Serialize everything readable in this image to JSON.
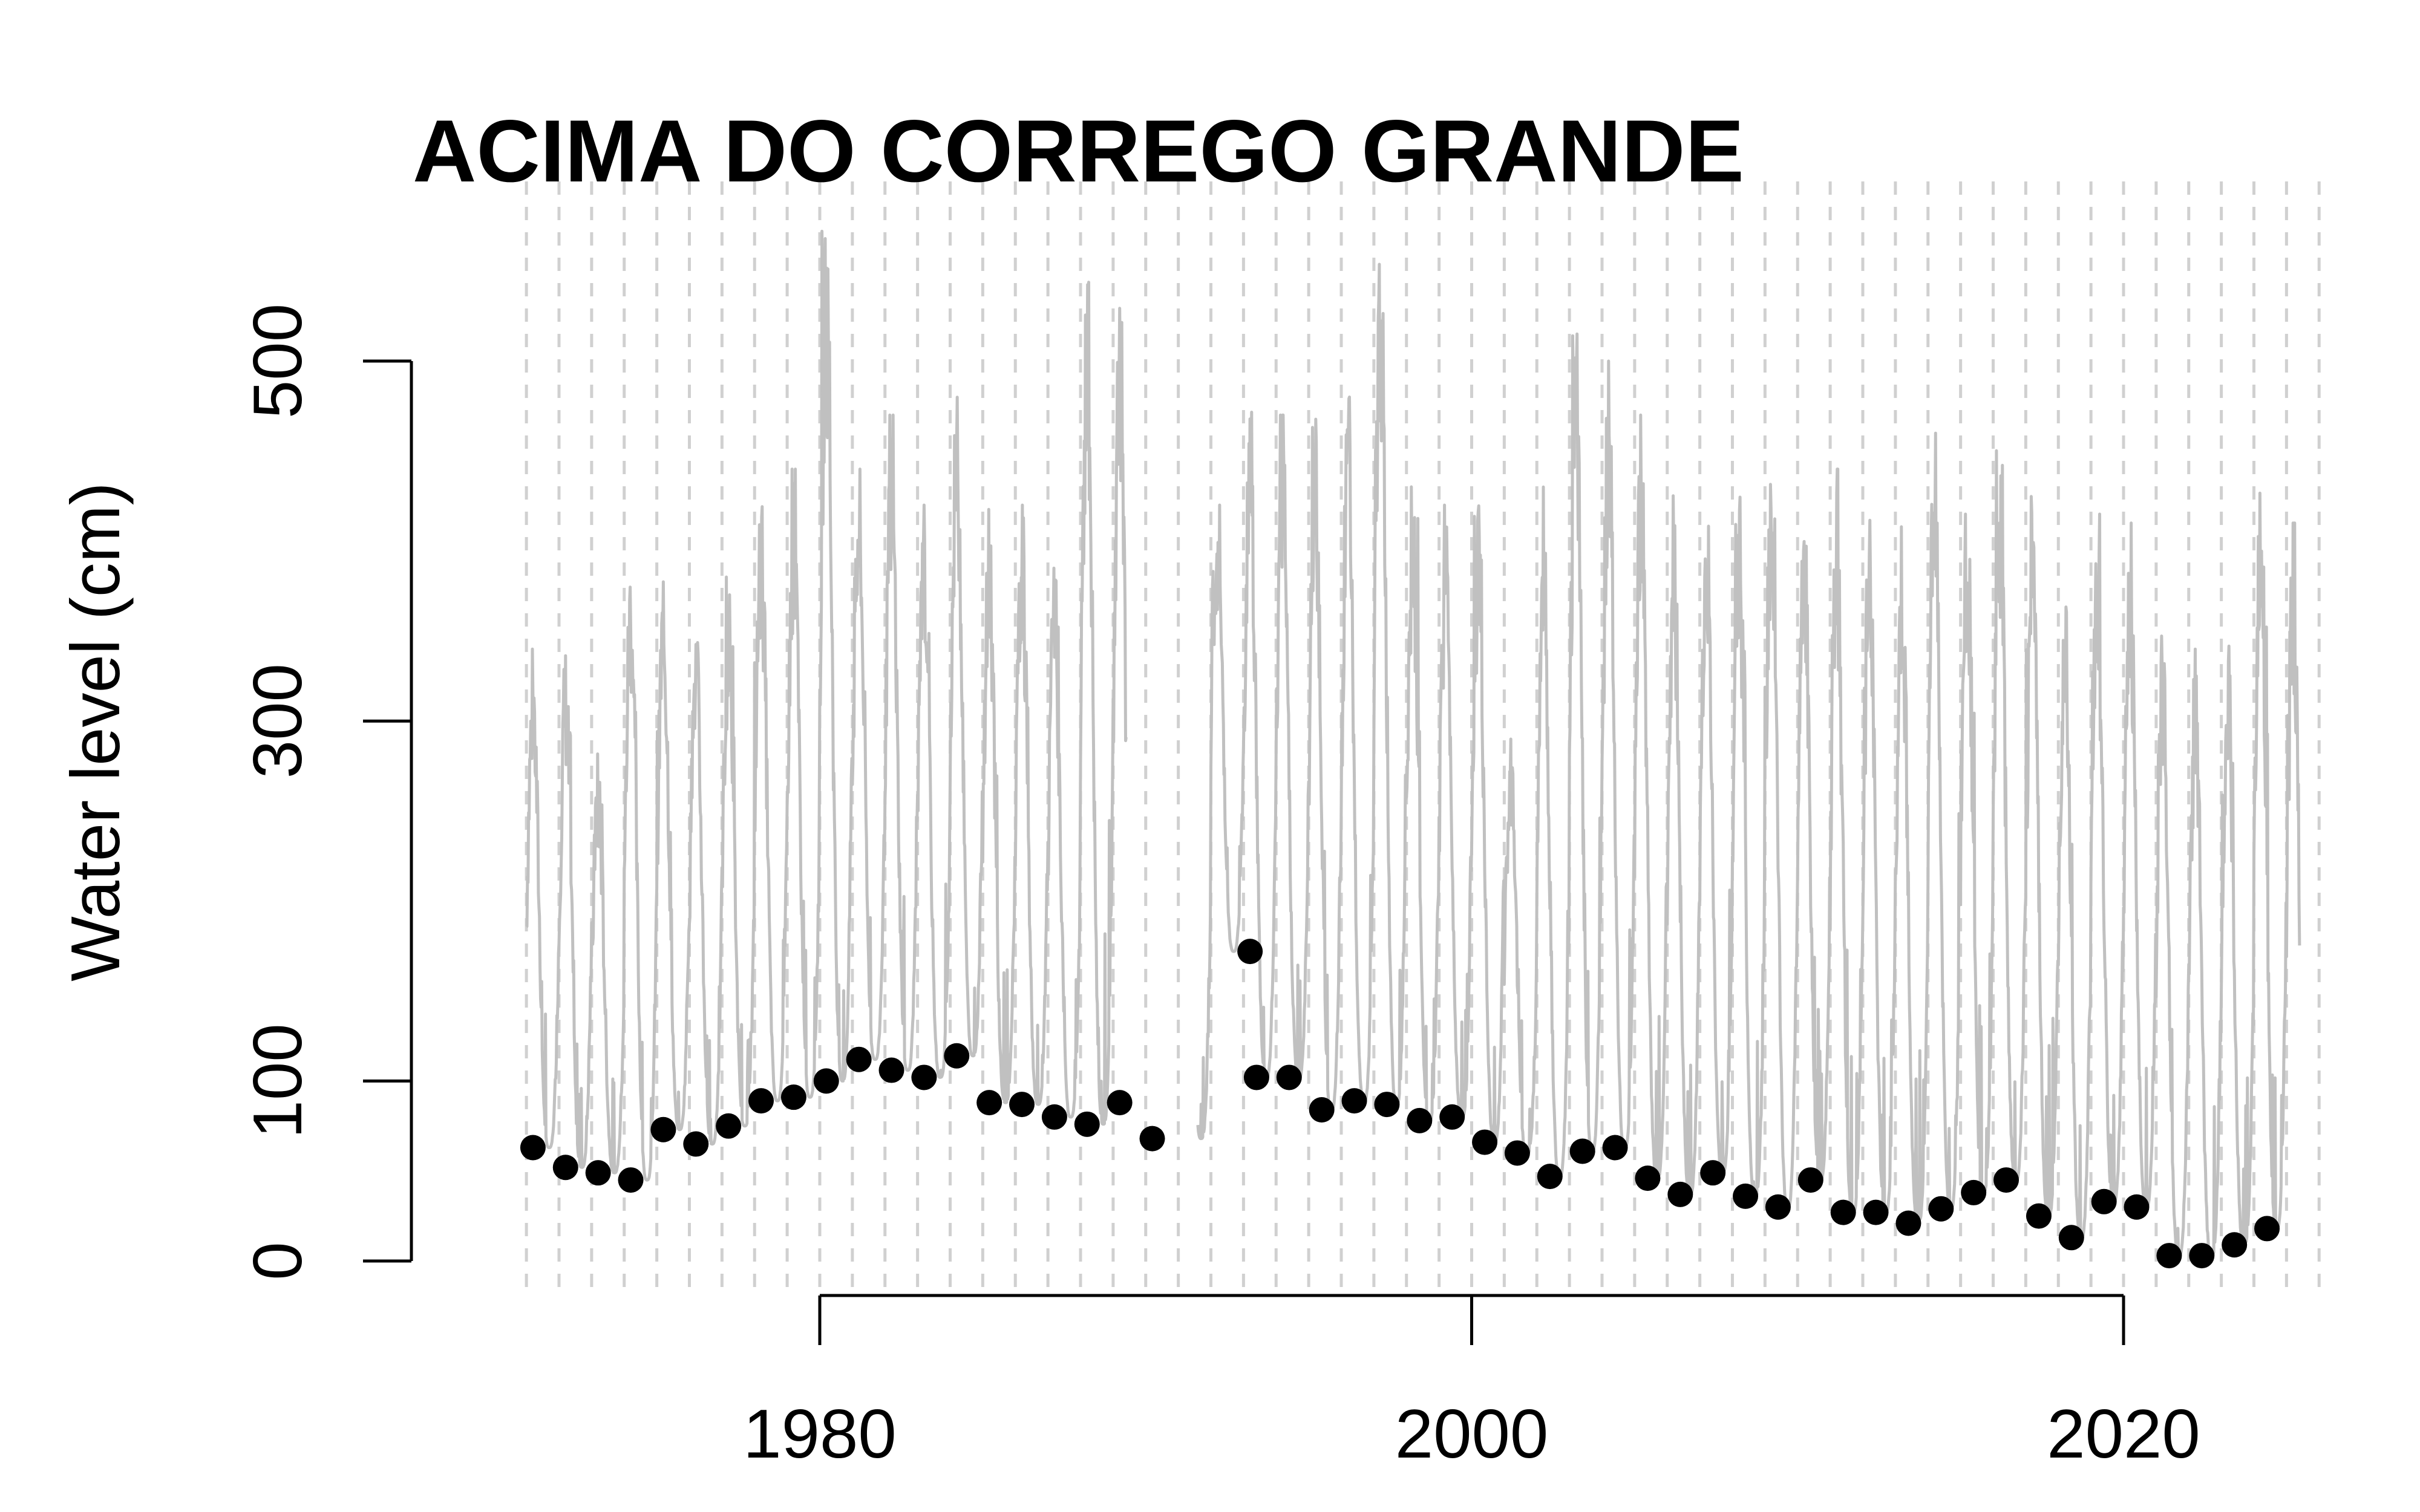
{
  "chart_data": {
    "type": "line",
    "title": "ACIMA DO CORREGO GRANDE",
    "ylabel": "Water level (cm)",
    "xlabel": "",
    "xlim": [
      1970.3,
      2026.3
    ],
    "ylim": [
      0,
      500
    ],
    "x_ticks": [
      1980,
      2000,
      2020
    ],
    "y_ticks": [
      0,
      100,
      300,
      500
    ],
    "grid": "vertical dashed line at each year",
    "colors": {
      "series": "#c0c0c0",
      "points": "#000000",
      "grid": "#d0d0d0",
      "axis": "#000000"
    },
    "series": [
      {
        "kind": "daily water level (seasonal)",
        "segments": [
          {
            "start": 1971,
            "end": 1989.4
          },
          {
            "start": 1991.6,
            "end": 2025.4
          }
        ],
        "annual_peaks": [
          {
            "year": 1971,
            "peak": 340
          },
          {
            "year": 1972,
            "peak": 345
          },
          {
            "year": 1973,
            "peak": 285
          },
          {
            "year": 1974,
            "peak": 400
          },
          {
            "year": 1975,
            "peak": 385
          },
          {
            "year": 1976,
            "peak": 360
          },
          {
            "year": 1977,
            "peak": 380
          },
          {
            "year": 1978,
            "peak": 430
          },
          {
            "year": 1979,
            "peak": 440
          },
          {
            "year": 1980,
            "peak": 580
          },
          {
            "year": 1981,
            "peak": 440
          },
          {
            "year": 1982,
            "peak": 470
          },
          {
            "year": 1983,
            "peak": 420
          },
          {
            "year": 1984,
            "peak": 485
          },
          {
            "year": 1985,
            "peak": 420
          },
          {
            "year": 1986,
            "peak": 420
          },
          {
            "year": 1987,
            "peak": 390
          },
          {
            "year": 1988,
            "peak": 550
          },
          {
            "year": 1989,
            "peak": 545
          },
          {
            "year": 1992,
            "peak": 420
          },
          {
            "year": 1993,
            "peak": 490
          },
          {
            "year": 1994,
            "peak": 470
          },
          {
            "year": 1995,
            "peak": 475
          },
          {
            "year": 1996,
            "peak": 480
          },
          {
            "year": 1997,
            "peak": 580
          },
          {
            "year": 1998,
            "peak": 435
          },
          {
            "year": 1999,
            "peak": 420
          },
          {
            "year": 2000,
            "peak": 425
          },
          {
            "year": 2001,
            "peak": 290
          },
          {
            "year": 2002,
            "peak": 430
          },
          {
            "year": 2003,
            "peak": 540
          },
          {
            "year": 2004,
            "peak": 500
          },
          {
            "year": 2005,
            "peak": 470
          },
          {
            "year": 2006,
            "peak": 430
          },
          {
            "year": 2007,
            "peak": 430
          },
          {
            "year": 2008,
            "peak": 440
          },
          {
            "year": 2009,
            "peak": 480
          },
          {
            "year": 2010,
            "peak": 440
          },
          {
            "year": 2011,
            "peak": 440
          },
          {
            "year": 2012,
            "peak": 425
          },
          {
            "year": 2013,
            "peak": 410
          },
          {
            "year": 2014,
            "peak": 475
          },
          {
            "year": 2015,
            "peak": 440
          },
          {
            "year": 2016,
            "peak": 455
          },
          {
            "year": 2017,
            "peak": 440
          },
          {
            "year": 2018,
            "peak": 390
          },
          {
            "year": 2019,
            "peak": 415
          },
          {
            "year": 2020,
            "peak": 410
          },
          {
            "year": 2021,
            "peak": 360
          },
          {
            "year": 2022,
            "peak": 340
          },
          {
            "year": 2023,
            "peak": 355
          },
          {
            "year": 2024,
            "peak": 450
          },
          {
            "year": 2025,
            "peak": 410
          }
        ]
      },
      {
        "kind": "annual minimum",
        "points": [
          {
            "x": 1971.2,
            "y": 63
          },
          {
            "x": 1972.2,
            "y": 52
          },
          {
            "x": 1973.2,
            "y": 49
          },
          {
            "x": 1974.2,
            "y": 45
          },
          {
            "x": 1975.2,
            "y": 73
          },
          {
            "x": 1976.2,
            "y": 65
          },
          {
            "x": 1977.2,
            "y": 75
          },
          {
            "x": 1978.2,
            "y": 89
          },
          {
            "x": 1979.2,
            "y": 91
          },
          {
            "x": 1980.2,
            "y": 100
          },
          {
            "x": 1981.2,
            "y": 112
          },
          {
            "x": 1982.2,
            "y": 106
          },
          {
            "x": 1983.2,
            "y": 102
          },
          {
            "x": 1984.2,
            "y": 114
          },
          {
            "x": 1985.2,
            "y": 88
          },
          {
            "x": 1986.2,
            "y": 87
          },
          {
            "x": 1987.2,
            "y": 80
          },
          {
            "x": 1988.2,
            "y": 76
          },
          {
            "x": 1989.2,
            "y": 88
          },
          {
            "x": 1990.2,
            "y": 68
          },
          {
            "x": 1993.2,
            "y": 172
          },
          {
            "x": 1993.4,
            "y": 102
          },
          {
            "x": 1994.4,
            "y": 102
          },
          {
            "x": 1995.4,
            "y": 84
          },
          {
            "x": 1996.4,
            "y": 89
          },
          {
            "x": 1997.4,
            "y": 87
          },
          {
            "x": 1998.4,
            "y": 78
          },
          {
            "x": 1999.4,
            "y": 80
          },
          {
            "x": 2000.4,
            "y": 66
          },
          {
            "x": 2001.4,
            "y": 60
          },
          {
            "x": 2002.4,
            "y": 47
          },
          {
            "x": 2003.4,
            "y": 61
          },
          {
            "x": 2004.4,
            "y": 63
          },
          {
            "x": 2005.4,
            "y": 46
          },
          {
            "x": 2006.4,
            "y": 37
          },
          {
            "x": 2007.4,
            "y": 49
          },
          {
            "x": 2008.4,
            "y": 36
          },
          {
            "x": 2009.4,
            "y": 30
          },
          {
            "x": 2010.4,
            "y": 45
          },
          {
            "x": 2011.4,
            "y": 27
          },
          {
            "x": 2012.4,
            "y": 27
          },
          {
            "x": 2013.4,
            "y": 21
          },
          {
            "x": 2014.4,
            "y": 29
          },
          {
            "x": 2015.4,
            "y": 38
          },
          {
            "x": 2016.4,
            "y": 45
          },
          {
            "x": 2017.4,
            "y": 25
          },
          {
            "x": 2018.4,
            "y": 13
          },
          {
            "x": 2019.4,
            "y": 33
          },
          {
            "x": 2020.4,
            "y": 30
          },
          {
            "x": 2021.4,
            "y": 3
          },
          {
            "x": 2022.4,
            "y": 3
          },
          {
            "x": 2023.4,
            "y": 9
          },
          {
            "x": 2024.4,
            "y": 18
          }
        ]
      }
    ]
  }
}
